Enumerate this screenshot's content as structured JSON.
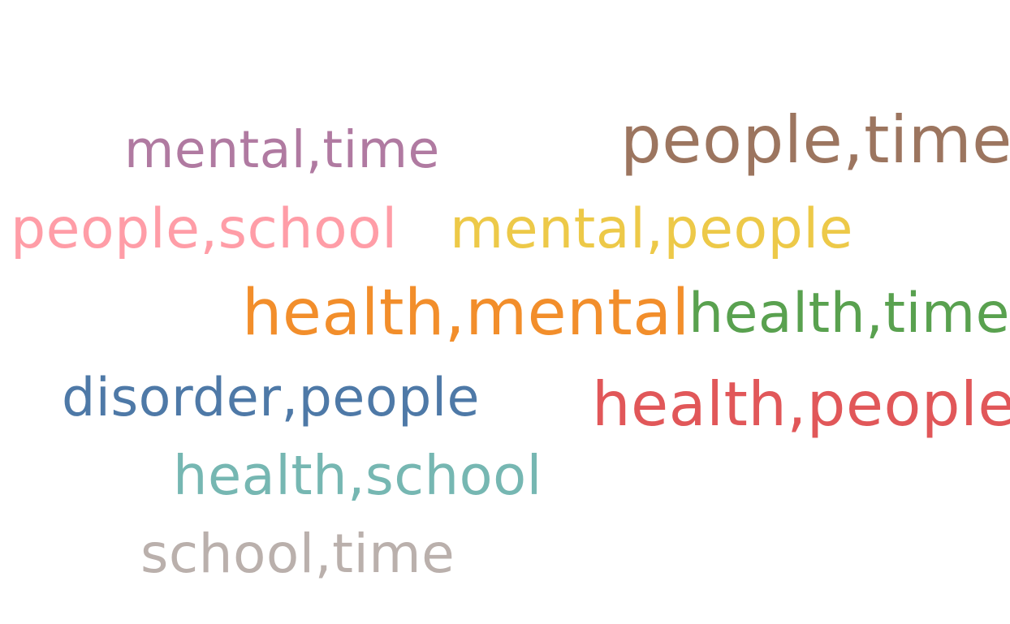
{
  "words": [
    {
      "text": "mental,time",
      "color": "#b07aa1"
    },
    {
      "text": "people,time",
      "color": "#9c755f"
    },
    {
      "text": "people,school",
      "color": "#ff9da7"
    },
    {
      "text": "mental,people",
      "color": "#edc948"
    },
    {
      "text": "health,mental",
      "color": "#f28e2b"
    },
    {
      "text": "health,time",
      "color": "#59a14f"
    },
    {
      "text": "disorder,people",
      "color": "#4e79a7"
    },
    {
      "text": "health,people",
      "color": "#e15759"
    },
    {
      "text": "health,school",
      "color": "#76b7b2"
    },
    {
      "text": "school,time",
      "color": "#bab0ac"
    }
  ]
}
